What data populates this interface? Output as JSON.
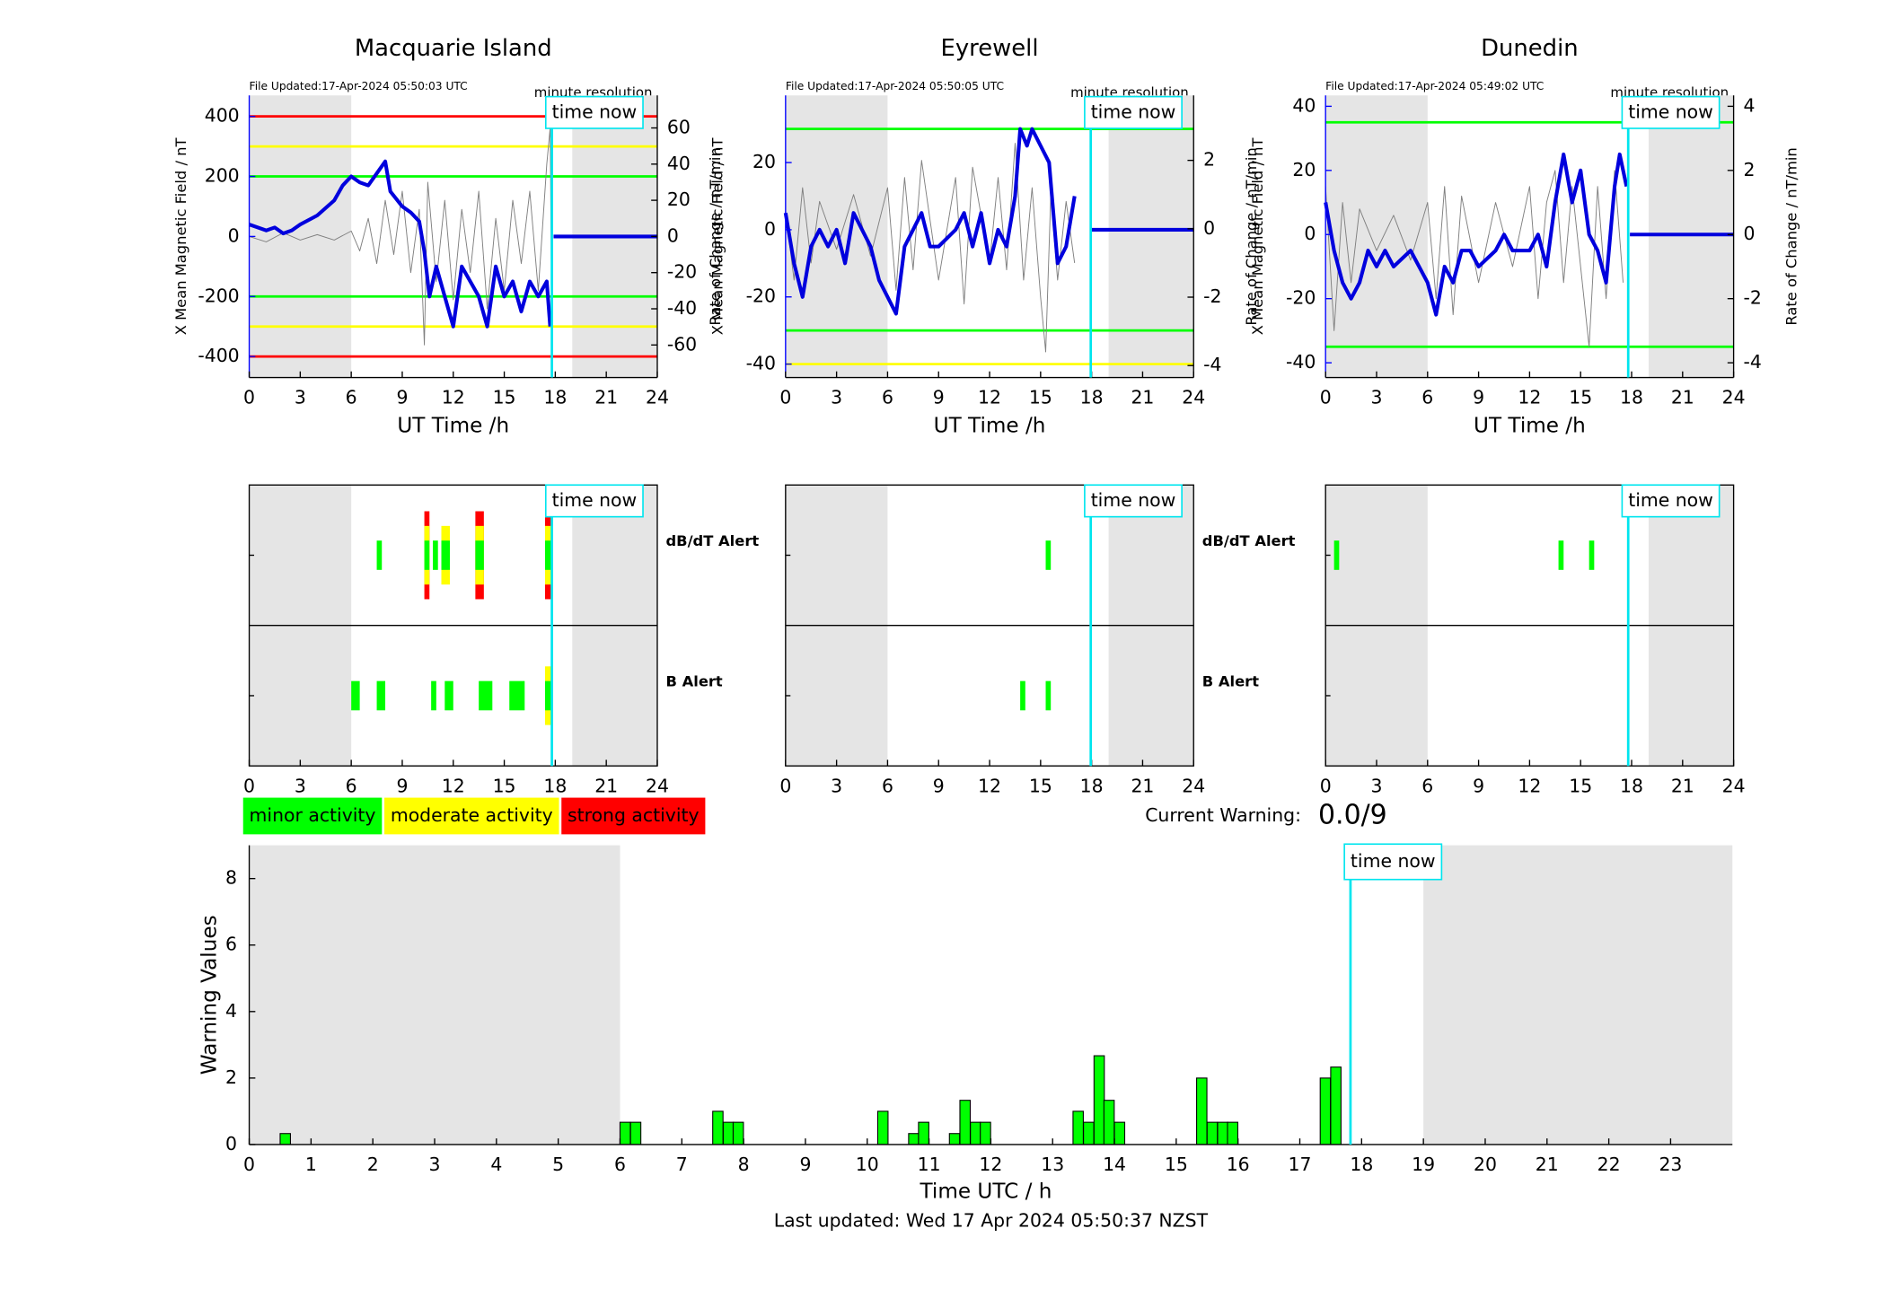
{
  "chart_data": [
    {
      "type": "line",
      "title": "Macquarie Island",
      "file_updated": "File Updated:17-Apr-2024 05:50:03 UTC",
      "resolution_note": "minute resolution",
      "ylabel": "X Mean Magnetic Field / nT",
      "y2label": "Rate of Change / nT/min",
      "xlabel": "UT Time /h",
      "y_color": "#0000ff",
      "xlim": [
        0,
        24
      ],
      "xticks": [
        0,
        3,
        6,
        9,
        12,
        15,
        18,
        21,
        24
      ],
      "ylim": [
        -470,
        470
      ],
      "yticks": [
        -400,
        -200,
        0,
        200,
        400
      ],
      "y2lim": [
        -78,
        78
      ],
      "y2ticks": [
        -60,
        -40,
        -20,
        0,
        20,
        40,
        60
      ],
      "shaded": [
        [
          0,
          6
        ],
        [
          19,
          24
        ]
      ],
      "hlines": [
        {
          "value": 400,
          "color": "#ff0000"
        },
        {
          "value": 300,
          "color": "#ffff00"
        },
        {
          "value": 200,
          "color": "#00ff00"
        },
        {
          "value": -200,
          "color": "#00ff00"
        },
        {
          "value": -300,
          "color": "#ffff00"
        },
        {
          "value": -400,
          "color": "#ff0000"
        }
      ],
      "time_now": {
        "label": "time now",
        "x": 17.8
      },
      "series": [
        {
          "axis": "y2",
          "color": "#808080",
          "width": 0.7,
          "x": [
            0,
            1,
            2,
            3,
            4,
            5,
            6,
            6.5,
            7,
            7.5,
            8,
            8.5,
            9,
            9.5,
            10,
            10.3,
            10.5,
            11,
            11.5,
            12,
            12.5,
            13,
            13.5,
            14,
            14.5,
            15,
            15.5,
            16,
            16.5,
            17,
            17.5,
            17.7,
            17.8
          ],
          "values": [
            0,
            -3,
            2,
            -2,
            1,
            -2,
            3,
            -8,
            10,
            -15,
            20,
            -10,
            25,
            -20,
            15,
            -60,
            30,
            -25,
            20,
            -35,
            15,
            -20,
            25,
            -40,
            10,
            -30,
            20,
            -15,
            25,
            -30,
            40,
            60,
            -50
          ]
        },
        {
          "axis": "y",
          "color": "#0000dd",
          "width": 3,
          "x": [
            0,
            1,
            1.5,
            2,
            2.5,
            3,
            4,
            5,
            5.5,
            6,
            6.5,
            7,
            7.5,
            8,
            8.3,
            9,
            9.5,
            10,
            10.3,
            10.6,
            11,
            11.5,
            12,
            12.5,
            13,
            13.5,
            14,
            14.5,
            15,
            15.5,
            16,
            16.5,
            17,
            17.5,
            17.7,
            17.85,
            17.9,
            24
          ],
          "values": [
            40,
            20,
            30,
            10,
            20,
            40,
            70,
            120,
            170,
            200,
            180,
            170,
            210,
            250,
            150,
            100,
            80,
            50,
            -50,
            -200,
            -100,
            -200,
            -300,
            -100,
            -150,
            -200,
            -300,
            -100,
            -200,
            -150,
            -250,
            -150,
            -200,
            -150,
            -300,
            null,
            0,
            0
          ]
        }
      ]
    },
    {
      "type": "line",
      "title": "Eyrewell",
      "file_updated": "File Updated:17-Apr-2024 05:50:05 UTC",
      "resolution_note": "minute resolution",
      "ylabel": "X Mean Magnetic Field / nT",
      "y2label": "Rate of Change / nT/min",
      "xlabel": "UT Time /h",
      "y_color": "#0000ff",
      "xlim": [
        0,
        24
      ],
      "xticks": [
        0,
        3,
        6,
        9,
        12,
        15,
        18,
        21,
        24
      ],
      "ylim": [
        -44,
        40
      ],
      "yticks": [
        -40,
        -20,
        0,
        20
      ],
      "y2lim": [
        -4.35,
        3.9
      ],
      "y2ticks": [
        -4,
        -2,
        0,
        2
      ],
      "shaded": [
        [
          0,
          6
        ],
        [
          19,
          24
        ]
      ],
      "hlines": [
        {
          "value": 30,
          "color": "#00ff00"
        },
        {
          "value": -30,
          "color": "#00ff00"
        },
        {
          "value": -40,
          "color": "#ffff00"
        }
      ],
      "time_now": {
        "label": "time now",
        "x": 17.95
      },
      "series": [
        {
          "axis": "y2",
          "color": "#808080",
          "width": 0.7,
          "x": [
            0,
            0.5,
            1,
            1.5,
            2,
            3,
            4,
            5,
            6,
            6.5,
            7,
            7.5,
            8,
            9,
            10,
            10.5,
            11,
            12,
            12.5,
            13,
            13.5,
            14,
            14.5,
            15,
            15.3,
            15.6,
            16,
            16.5,
            17
          ],
          "values": [
            0.5,
            -1.5,
            1.2,
            -1,
            0.8,
            -0.6,
            1,
            -0.8,
            1.2,
            -1.8,
            1.5,
            -1.2,
            2,
            -1.5,
            1.5,
            -2.2,
            1.8,
            -1,
            1.5,
            -1.2,
            2.5,
            -1.5,
            1.2,
            -2,
            -3.6,
            1,
            -1.5,
            0.8,
            -1
          ]
        },
        {
          "axis": "y",
          "color": "#0000dd",
          "width": 3,
          "x": [
            0,
            0.5,
            1,
            1.5,
            2,
            2.5,
            3,
            3.5,
            4,
            5,
            5.5,
            6,
            6.5,
            7,
            7.5,
            8,
            8.5,
            9,
            10,
            10.5,
            11,
            11.5,
            12,
            12.5,
            13,
            13.5,
            13.8,
            14.2,
            14.5,
            15,
            15.5,
            16,
            16.5,
            17,
            17.5,
            17.9,
            24
          ],
          "values": [
            5,
            -10,
            -20,
            -5,
            0,
            -5,
            0,
            -10,
            5,
            -5,
            -15,
            -20,
            -25,
            -5,
            0,
            5,
            -5,
            -5,
            0,
            5,
            -5,
            5,
            -10,
            0,
            -5,
            10,
            30,
            25,
            30,
            25,
            20,
            -10,
            -5,
            10,
            null,
            0,
            0
          ]
        }
      ]
    },
    {
      "type": "line",
      "title": "Dunedin",
      "file_updated": "File Updated:17-Apr-2024 05:49:02 UTC",
      "resolution_note": "minute resolution",
      "ylabel": "X Mean Magnetic Field / nT",
      "y2label": "Rate of Change / nT/min",
      "xlabel": "UT Time /h",
      "y_color": "#0000ff",
      "xlim": [
        0,
        24
      ],
      "xticks": [
        0,
        3,
        6,
        9,
        12,
        15,
        18,
        21,
        24
      ],
      "ylim": [
        -44.6,
        43.4
      ],
      "yticks": [
        -40,
        -20,
        0,
        20,
        40
      ],
      "y2lim": [
        -4.46,
        4.34
      ],
      "y2ticks": [
        -4,
        -2,
        0,
        2,
        4
      ],
      "shaded": [
        [
          0,
          6
        ],
        [
          19,
          24
        ]
      ],
      "hlines": [
        {
          "value": 35,
          "color": "#00ff00"
        },
        {
          "value": -35,
          "color": "#00ff00"
        }
      ],
      "time_now": {
        "label": "time now",
        "x": 17.8
      },
      "series": [
        {
          "axis": "y2",
          "color": "#808080",
          "width": 0.7,
          "x": [
            0,
            0.5,
            1,
            1.5,
            2,
            3,
            4,
            5,
            6,
            6.5,
            7,
            7.5,
            8,
            9,
            10,
            11,
            12,
            12.5,
            13,
            13.5,
            14,
            14.5,
            15,
            15.5,
            16,
            16.5,
            17,
            17.5
          ],
          "values": [
            1.5,
            -3,
            1,
            -1.5,
            0.8,
            -0.5,
            0.6,
            -0.8,
            1,
            -2,
            1.5,
            -2.5,
            1.2,
            -1.5,
            1,
            -1,
            1.5,
            -2,
            1,
            2,
            -1.5,
            1.5,
            -1,
            -3.5,
            1.5,
            -2,
            2,
            -1.5
          ]
        },
        {
          "axis": "y",
          "color": "#0000dd",
          "width": 3,
          "x": [
            0,
            0.5,
            1,
            1.5,
            2,
            2.5,
            3,
            3.5,
            4,
            5,
            5.5,
            6,
            6.5,
            7,
            7.5,
            8,
            8.5,
            9,
            10,
            10.5,
            11,
            12,
            12.5,
            13,
            13.5,
            14,
            14.5,
            15,
            15.5,
            16,
            16.5,
            17,
            17.3,
            17.7,
            17.8,
            17.9,
            24
          ],
          "values": [
            10,
            -5,
            -15,
            -20,
            -15,
            -5,
            -10,
            -5,
            -10,
            -5,
            -10,
            -15,
            -25,
            -10,
            -15,
            -5,
            -5,
            -10,
            -5,
            0,
            -5,
            -5,
            0,
            -10,
            10,
            25,
            10,
            20,
            0,
            -5,
            -15,
            15,
            25,
            15,
            null,
            0,
            0
          ]
        }
      ]
    },
    {
      "type": "alert",
      "xlim": [
        0,
        24
      ],
      "xticks": [
        0,
        3,
        6,
        9,
        12,
        15,
        18,
        21,
        24
      ],
      "shaded": [
        [
          0,
          6
        ],
        [
          19,
          24
        ]
      ],
      "time_now": {
        "label": "time now",
        "x": 17.8
      },
      "rows": [
        {
          "label": "dB/dT Alert",
          "label_color": "#000000",
          "bars": [
            {
              "x": [
                7.5,
                7.8
              ],
              "level": 1
            },
            {
              "x": [
                10.3,
                10.6
              ],
              "level": 3
            },
            {
              "x": [
                10.8,
                11.1
              ],
              "level": 1
            },
            {
              "x": [
                11.3,
                11.8
              ],
              "level": 2
            },
            {
              "x": [
                13.3,
                13.8
              ],
              "level": 3
            },
            {
              "x": [
                17.4,
                17.8
              ],
              "level": 3
            }
          ]
        },
        {
          "label": "B Alert",
          "label_color": "#0000ff",
          "bars": [
            {
              "x": [
                6.0,
                6.5
              ],
              "level": 1
            },
            {
              "x": [
                7.5,
                8.0
              ],
              "level": 1
            },
            {
              "x": [
                10.7,
                11.0
              ],
              "level": 1
            },
            {
              "x": [
                11.5,
                12.0
              ],
              "level": 1
            },
            {
              "x": [
                13.5,
                14.3
              ],
              "level": 1
            },
            {
              "x": [
                15.3,
                16.2
              ],
              "level": 1
            },
            {
              "x": [
                17.4,
                17.8
              ],
              "level": 2
            }
          ]
        }
      ]
    },
    {
      "type": "alert",
      "xlim": [
        0,
        24
      ],
      "xticks": [
        0,
        3,
        6,
        9,
        12,
        15,
        18,
        21,
        24
      ],
      "shaded": [
        [
          0,
          6
        ],
        [
          19,
          24
        ]
      ],
      "time_now": {
        "label": "time now",
        "x": 17.95
      },
      "rows": [
        {
          "label": "dB/dT Alert",
          "label_color": "#000000",
          "bars": [
            {
              "x": [
                15.3,
                15.6
              ],
              "level": 1
            }
          ]
        },
        {
          "label": "B Alert",
          "label_color": "#0000ff",
          "bars": [
            {
              "x": [
                13.8,
                14.1
              ],
              "level": 1
            },
            {
              "x": [
                15.3,
                15.6
              ],
              "level": 1
            }
          ]
        }
      ]
    },
    {
      "type": "alert",
      "xlim": [
        0,
        24
      ],
      "xticks": [
        0,
        3,
        6,
        9,
        12,
        15,
        18,
        21,
        24
      ],
      "shaded": [
        [
          0,
          6
        ],
        [
          19,
          24
        ]
      ],
      "time_now": {
        "label": "time now",
        "x": 17.8
      },
      "rows": [
        {
          "bars": [
            {
              "x": [
                0.5,
                0.8
              ],
              "level": 1
            },
            {
              "x": [
                13.7,
                14.0
              ],
              "level": 1
            },
            {
              "x": [
                15.5,
                15.8
              ],
              "level": 1
            }
          ]
        },
        {
          "bars": []
        }
      ]
    },
    {
      "type": "bar",
      "ylabel": "Warning Values",
      "xlabel": "Time UTC / h",
      "color": "#00ff00",
      "bar_width": 0.1667,
      "xlim": [
        0,
        24
      ],
      "xticks": [
        0,
        1,
        2,
        3,
        4,
        5,
        6,
        7,
        8,
        9,
        10,
        11,
        12,
        13,
        14,
        15,
        16,
        17,
        18,
        19,
        20,
        21,
        22,
        23
      ],
      "ylim": [
        0,
        9
      ],
      "yticks": [
        0,
        2,
        4,
        6,
        8
      ],
      "shaded": [
        [
          0,
          6
        ],
        [
          19,
          24
        ]
      ],
      "time_now": {
        "label": "time now",
        "x": 17.82
      },
      "x": [
        0.5,
        6.0,
        6.17,
        7.5,
        7.67,
        7.83,
        10.17,
        10.67,
        10.83,
        11.33,
        11.5,
        11.67,
        11.83,
        13.33,
        13.5,
        13.67,
        13.83,
        14.0,
        15.33,
        15.5,
        15.67,
        15.83,
        17.33,
        17.5
      ],
      "values": [
        0.33,
        0.67,
        0.67,
        1,
        0.67,
        0.67,
        1,
        0.33,
        0.67,
        0.33,
        1.33,
        0.67,
        0.67,
        1,
        0.67,
        2.67,
        1.33,
        0.67,
        2,
        0.67,
        0.67,
        0.67,
        2,
        2.33
      ]
    }
  ],
  "activity_legend": [
    {
      "label": "minor activity",
      "color": "#00ff00"
    },
    {
      "label": "moderate activity",
      "color": "#ffff00"
    },
    {
      "label": "strong activity",
      "color": "#ff0000"
    }
  ],
  "current_warning": {
    "label": "Current Warning:",
    "value": "0.0/9"
  },
  "footer": "Last updated: Wed 17 Apr 2024 05:50:37 NZST"
}
